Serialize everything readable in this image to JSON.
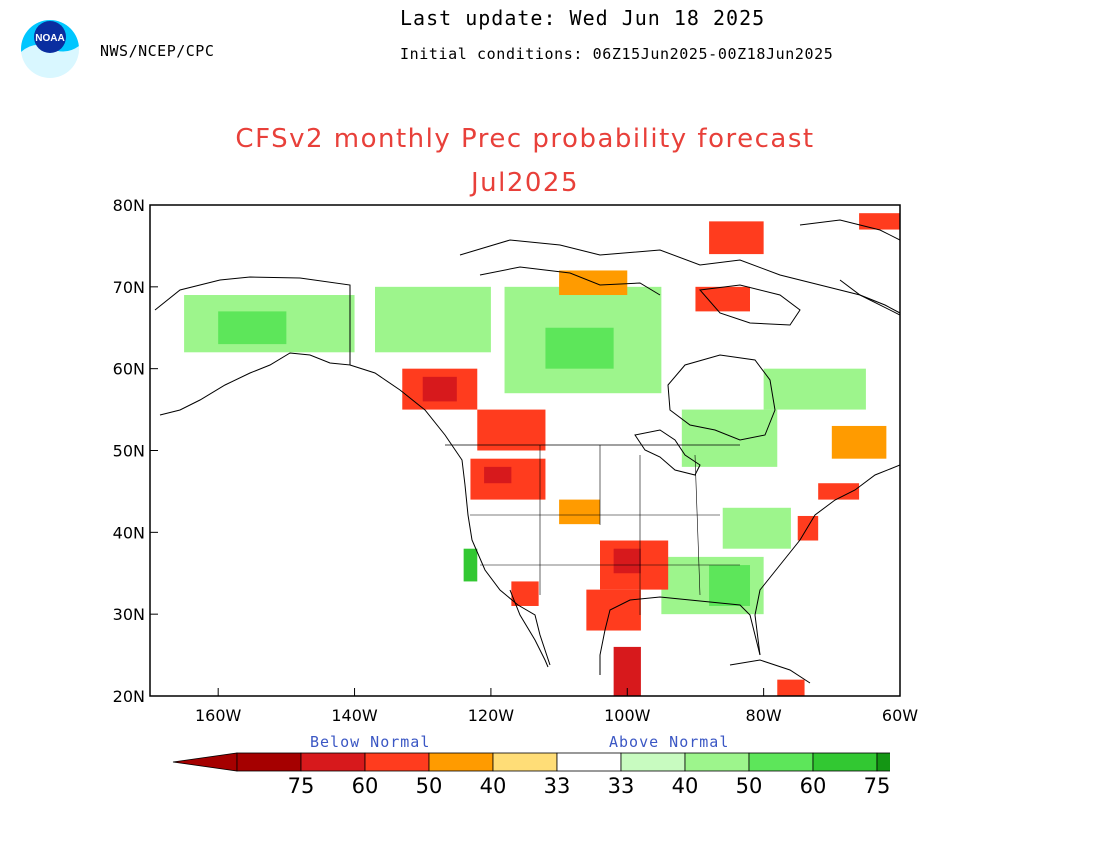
{
  "header": {
    "agency": "NWS/NCEP/CPC",
    "last_update": "Last update: Wed Jun 18 2025",
    "initial_conditions": "Initial conditions: 06Z15Jun2025-00Z18Jun2025",
    "logo_text": "NOAA"
  },
  "title": "CFSv2 monthly Prec probability forecast",
  "subtitle": "Jul2025",
  "map": {
    "lon_range": [
      -170,
      -60
    ],
    "lat_range": [
      20,
      80
    ],
    "x_ticks": [
      "160W",
      "140W",
      "120W",
      "100W",
      "80W",
      "60W"
    ],
    "y_ticks": [
      "80N",
      "70N",
      "60N",
      "50N",
      "40N",
      "30N",
      "20N"
    ],
    "regions": [
      {
        "category": "above",
        "level": 40,
        "lon": [
          -165,
          -140
        ],
        "lat": [
          62,
          69
        ]
      },
      {
        "category": "above",
        "level": 50,
        "lon": [
          -160,
          -150
        ],
        "lat": [
          63,
          67
        ]
      },
      {
        "category": "above",
        "level": 40,
        "lon": [
          -137,
          -120
        ],
        "lat": [
          62,
          70
        ]
      },
      {
        "category": "above",
        "level": 40,
        "lon": [
          -118,
          -95
        ],
        "lat": [
          57,
          70
        ]
      },
      {
        "category": "above",
        "level": 50,
        "lon": [
          -112,
          -102
        ],
        "lat": [
          60,
          65
        ]
      },
      {
        "category": "above",
        "level": 40,
        "lon": [
          -92,
          -78
        ],
        "lat": [
          48,
          55
        ]
      },
      {
        "category": "above",
        "level": 40,
        "lon": [
          -80,
          -65
        ],
        "lat": [
          55,
          60
        ]
      },
      {
        "category": "above",
        "level": 40,
        "lon": [
          -95,
          -80
        ],
        "lat": [
          30,
          37
        ]
      },
      {
        "category": "above",
        "level": 50,
        "lon": [
          -88,
          -82
        ],
        "lat": [
          31,
          36
        ]
      },
      {
        "category": "above",
        "level": 40,
        "lon": [
          -86,
          -76
        ],
        "lat": [
          38,
          43
        ]
      },
      {
        "category": "above",
        "level": 60,
        "lon": [
          -124,
          -122
        ],
        "lat": [
          34,
          38
        ]
      },
      {
        "category": "below",
        "level": 50,
        "lon": [
          -133,
          -122
        ],
        "lat": [
          55,
          60
        ]
      },
      {
        "category": "below",
        "level": 60,
        "lon": [
          -130,
          -125
        ],
        "lat": [
          56,
          59
        ]
      },
      {
        "category": "below",
        "level": 50,
        "lon": [
          -122,
          -112
        ],
        "lat": [
          50,
          55
        ]
      },
      {
        "category": "below",
        "level": 50,
        "lon": [
          -123,
          -112
        ],
        "lat": [
          44,
          49
        ]
      },
      {
        "category": "below",
        "level": 60,
        "lon": [
          -121,
          -117
        ],
        "lat": [
          46,
          48
        ]
      },
      {
        "category": "below",
        "level": 50,
        "lon": [
          -104,
          -94
        ],
        "lat": [
          33,
          39
        ]
      },
      {
        "category": "below",
        "level": 60,
        "lon": [
          -102,
          -98
        ],
        "lat": [
          35,
          38
        ]
      },
      {
        "category": "below",
        "level": 50,
        "lon": [
          -106,
          -98
        ],
        "lat": [
          28,
          33
        ]
      },
      {
        "category": "below",
        "level": 60,
        "lon": [
          -102,
          -98
        ],
        "lat": [
          20,
          26
        ]
      },
      {
        "category": "below",
        "level": 50,
        "lon": [
          -117,
          -113
        ],
        "lat": [
          31,
          34
        ]
      },
      {
        "category": "below",
        "level": 40,
        "lon": [
          -110,
          -104
        ],
        "lat": [
          41,
          44
        ]
      },
      {
        "category": "below",
        "level": 50,
        "lon": [
          -88,
          -80
        ],
        "lat": [
          74,
          78
        ]
      },
      {
        "category": "below",
        "level": 50,
        "lon": [
          -90,
          -82
        ],
        "lat": [
          67,
          70
        ]
      },
      {
        "category": "below",
        "level": 40,
        "lon": [
          -110,
          -100
        ],
        "lat": [
          69,
          72
        ]
      },
      {
        "category": "below",
        "level": 50,
        "lon": [
          -66,
          -60
        ],
        "lat": [
          77,
          79
        ]
      },
      {
        "category": "below",
        "level": 50,
        "lon": [
          -75,
          -72
        ],
        "lat": [
          39,
          42
        ]
      },
      {
        "category": "below",
        "level": 50,
        "lon": [
          -72,
          -66
        ],
        "lat": [
          44,
          46
        ]
      },
      {
        "category": "below",
        "level": 40,
        "lon": [
          -70,
          -62
        ],
        "lat": [
          49,
          53
        ]
      },
      {
        "category": "below",
        "level": 50,
        "lon": [
          -78,
          -74
        ],
        "lat": [
          20,
          22
        ]
      }
    ]
  },
  "legend": {
    "below_label": "Below Normal",
    "above_label": "Above Normal",
    "below_values": [
      "75",
      "60",
      "50",
      "40",
      "33"
    ],
    "above_values": [
      "33",
      "40",
      "50",
      "60",
      "75"
    ],
    "below_colors": [
      "#a50000",
      "#d7191c",
      "#ff3c1e",
      "#ff9b00",
      "#ffdd77"
    ],
    "white": "#ffffff",
    "above_colors": [
      "#c8fbc0",
      "#9df58c",
      "#5de65a",
      "#32c832",
      "#149614"
    ]
  }
}
